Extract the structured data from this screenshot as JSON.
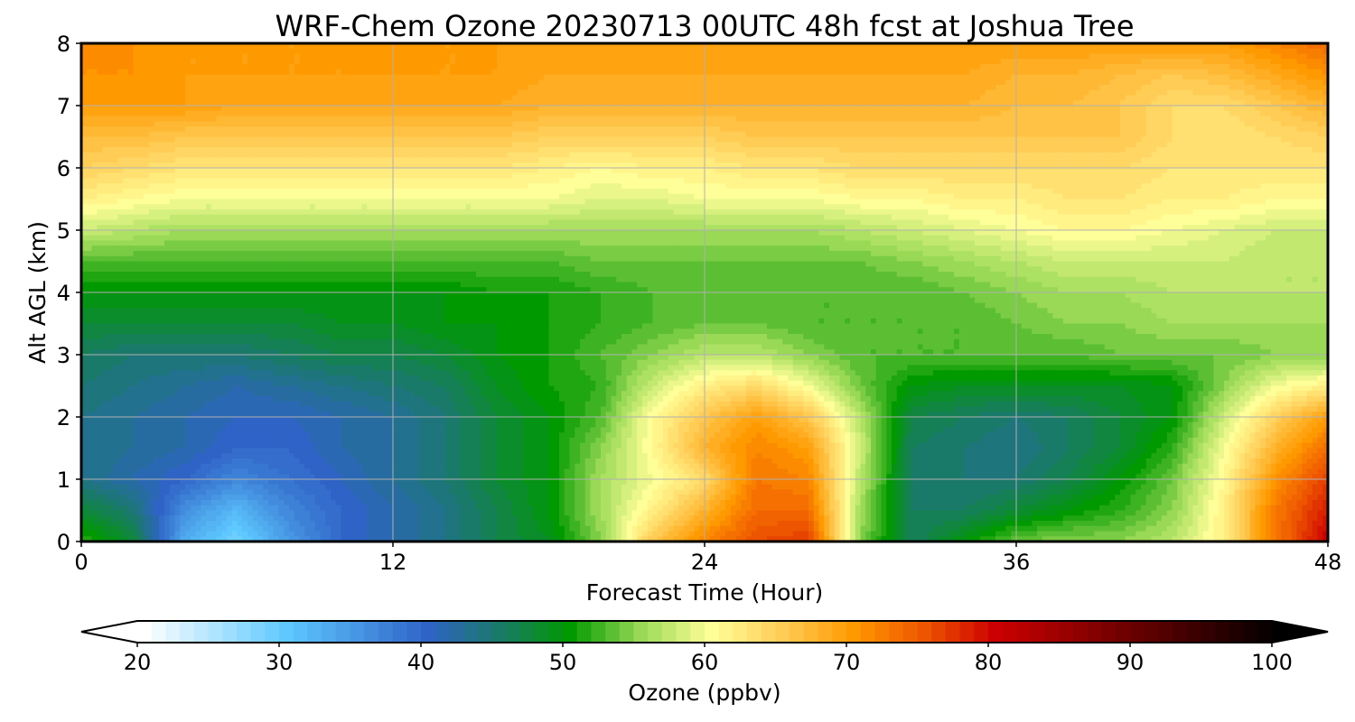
{
  "chart_data": {
    "type": "heatmap",
    "title": "WRF-Chem Ozone  20230713 00UTC 48h fcst at Joshua Tree",
    "xlabel": "Forecast Time (Hour)",
    "ylabel": "Alt AGL (km)",
    "xlim": [
      0,
      48
    ],
    "ylim": [
      0,
      8
    ],
    "xticks": [
      0,
      12,
      24,
      36,
      48
    ],
    "yticks": [
      0,
      1,
      2,
      3,
      4,
      5,
      6,
      7,
      8
    ],
    "grid": true,
    "colorbar": {
      "label": "Ozone  (ppbv)",
      "range": [
        20,
        100
      ],
      "ticks": [
        20,
        30,
        40,
        50,
        60,
        70,
        80,
        90,
        100
      ],
      "extend": "both",
      "levels": 81,
      "color_stops": [
        {
          "value": 20,
          "color": "#ffffff"
        },
        {
          "value": 30,
          "color": "#5ec8ff"
        },
        {
          "value": 40,
          "color": "#2f63c6"
        },
        {
          "value": 45,
          "color": "#1a7a6a"
        },
        {
          "value": 50,
          "color": "#009900"
        },
        {
          "value": 55,
          "color": "#99d955"
        },
        {
          "value": 60,
          "color": "#ffff99"
        },
        {
          "value": 65,
          "color": "#ffcc55"
        },
        {
          "value": 70,
          "color": "#ff9900"
        },
        {
          "value": 75,
          "color": "#ee5500"
        },
        {
          "value": 80,
          "color": "#cc0000"
        },
        {
          "value": 90,
          "color": "#660000"
        },
        {
          "value": 100,
          "color": "#000000"
        }
      ],
      "under_color": "#ffffff",
      "over_color": "#000000"
    },
    "x": [
      0,
      2,
      4,
      6,
      8,
      10,
      12,
      14,
      16,
      18,
      20,
      22,
      24,
      26,
      28,
      30,
      32,
      34,
      36,
      38,
      40,
      42,
      44,
      46,
      48
    ],
    "y": [
      0,
      0.5,
      1,
      1.5,
      2,
      2.5,
      3,
      3.5,
      4,
      4.5,
      5,
      5.5,
      6,
      6.5,
      7,
      7.5,
      8
    ],
    "z": [
      [
        52,
        48,
        33,
        29,
        35,
        40,
        42,
        44,
        47,
        49,
        55,
        66,
        72,
        76,
        77,
        55,
        46,
        50,
        54,
        55,
        55,
        57,
        62,
        73,
        81
      ],
      [
        48,
        45,
        36,
        32,
        37,
        40,
        42,
        44,
        47,
        50,
        56,
        62,
        68,
        74,
        74,
        56,
        46,
        46,
        48,
        50,
        52,
        55,
        62,
        73,
        79
      ],
      [
        44,
        42,
        40,
        37,
        39,
        41,
        43,
        45,
        48,
        50,
        56,
        60,
        64,
        73,
        72,
        57,
        46,
        45,
        45,
        47,
        50,
        54,
        61,
        71,
        77
      ],
      [
        44,
        43,
        42,
        40,
        40,
        42,
        43,
        45,
        48,
        50,
        55,
        61,
        68,
        72,
        70,
        58,
        46,
        45,
        44,
        46,
        48,
        52,
        60,
        68,
        74
      ],
      [
        44,
        43,
        42,
        41,
        41,
        42,
        43,
        45,
        48,
        50,
        53,
        61,
        66,
        70,
        66,
        57,
        47,
        46,
        45,
        46,
        48,
        50,
        58,
        65,
        70
      ],
      [
        45,
        44,
        43,
        42,
        43,
        44,
        45,
        46,
        49,
        51,
        52,
        58,
        62,
        64,
        60,
        54,
        50,
        49,
        49,
        49,
        49,
        50,
        55,
        60,
        62
      ],
      [
        46,
        45,
        45,
        45,
        46,
        47,
        47,
        48,
        50,
        51,
        53,
        55,
        57,
        57,
        55,
        53,
        53,
        53,
        53,
        53,
        54,
        54,
        54,
        55,
        55
      ],
      [
        48,
        48,
        48,
        48,
        48,
        49,
        49,
        50,
        50,
        51,
        52,
        53,
        54,
        54,
        53,
        53,
        53,
        53,
        54,
        55,
        55,
        56,
        56,
        56,
        56
      ],
      [
        50,
        50,
        50,
        50,
        50,
        50,
        50,
        50,
        51,
        51,
        52,
        53,
        53,
        53,
        53,
        53,
        53,
        54,
        55,
        56,
        56,
        57,
        57,
        57,
        57
      ],
      [
        53,
        53,
        53,
        53,
        53,
        53,
        53,
        53,
        53,
        53,
        54,
        54,
        54,
        54,
        54,
        54,
        55,
        56,
        57,
        58,
        58,
        58,
        58,
        57,
        57
      ],
      [
        58,
        57,
        56,
        56,
        56,
        56,
        56,
        56,
        56,
        56,
        56,
        56,
        56,
        56,
        56,
        57,
        58,
        59,
        60,
        61,
        61,
        60,
        59,
        58,
        58
      ],
      [
        62,
        61,
        60,
        60,
        60,
        60,
        60,
        60,
        60,
        60,
        59,
        59,
        60,
        60,
        60,
        61,
        61,
        62,
        62,
        63,
        63,
        62,
        62,
        61,
        61
      ],
      [
        65,
        64,
        63,
        63,
        63,
        63,
        63,
        63,
        63,
        62,
        61,
        62,
        62,
        63,
        63,
        64,
        64,
        64,
        64,
        64,
        64,
        63,
        63,
        63,
        63
      ],
      [
        67,
        67,
        66,
        66,
        66,
        66,
        66,
        66,
        66,
        65,
        65,
        65,
        65,
        66,
        66,
        66,
        66,
        66,
        66,
        66,
        66,
        64,
        63,
        64,
        65
      ],
      [
        70,
        70,
        70,
        69,
        69,
        69,
        69,
        69,
        69,
        68,
        68,
        68,
        68,
        68,
        68,
        68,
        68,
        68,
        67,
        67,
        66,
        64,
        64,
        66,
        68
      ],
      [
        71,
        71,
        70,
        70,
        70,
        70,
        70,
        70,
        70,
        69,
        69,
        69,
        69,
        69,
        69,
        69,
        69,
        69,
        68,
        68,
        67,
        66,
        67,
        69,
        71
      ],
      [
        71,
        71,
        70,
        70,
        70,
        70,
        70,
        70,
        70,
        70,
        70,
        70,
        70,
        70,
        70,
        70,
        70,
        70,
        70,
        70,
        70,
        70,
        70,
        72,
        74
      ]
    ]
  }
}
